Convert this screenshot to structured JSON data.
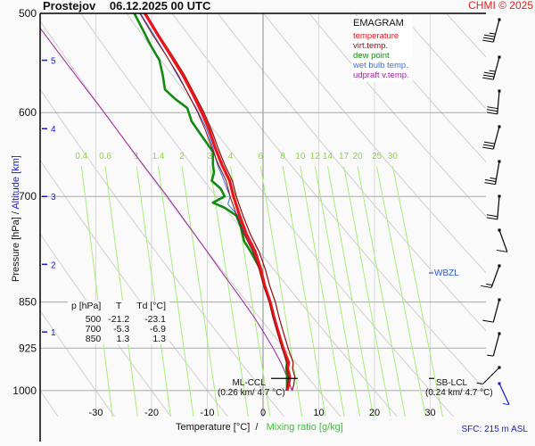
{
  "header": {
    "station": "Prostejov",
    "datetime": "06.12.2025 00 UTC",
    "credit": "CHMI © 2025"
  },
  "legend": {
    "title": "EMAGRAM",
    "items": [
      {
        "label": "temperature",
        "color": "#e8151b"
      },
      {
        "label": "virt.temp.",
        "color": "#8b0f0f"
      },
      {
        "label": "dew point",
        "color": "#138a13"
      },
      {
        "label": "wet bulb temp.",
        "color": "#3070e0"
      },
      {
        "label": "udpraft v.temp.",
        "color": "#a020a0"
      }
    ]
  },
  "axes": {
    "y_title_pressure": "Pressure [hPa]",
    "y_title_sep": "/",
    "y_title_altitude": "Altitude [km]",
    "x_title_temp": "Temperature [°C]",
    "x_title_sep": "/",
    "x_title_mixing": "Mixing ratio [g/kg]",
    "surface": "SFC: 215 m ASL"
  },
  "table": {
    "headers": [
      "p [hPa]",
      "T",
      "Td [°C]"
    ],
    "rows": [
      [
        "500",
        "-21.2",
        "-23.1"
      ],
      [
        "700",
        "-5.3",
        "-6.9"
      ],
      [
        "850",
        "1.3",
        "1.3"
      ]
    ]
  },
  "annotations": {
    "ml_ccl": "ML-CCL",
    "ml_ccl_detail": "(0.26 km/ 4.7 °C)",
    "sb_lcl": "SB-LCL",
    "sb_lcl_detail": "(0.24 km/ 4.7 °C)",
    "wbzl": "WBZL"
  },
  "chart_data": {
    "type": "line",
    "title": "Prostejov 06.12.2025 00 UTC – EMAGRAM",
    "xlabel": "Temperature [°C] / Mixing ratio [g/kg]",
    "ylabel": "Pressure [hPa] / Altitude [km]",
    "xlim": [
      -40,
      40
    ],
    "ylim": [
      1050,
      500
    ],
    "x_ticks": [
      "-30",
      "-20",
      "-10",
      "0",
      "10",
      "20",
      "30"
    ],
    "x_tick_values": [
      -30,
      -20,
      -10,
      0,
      10,
      20,
      30
    ],
    "y_ticks": [
      "500",
      "600",
      "700",
      "850",
      "925",
      "1000"
    ],
    "y_tick_values": [
      500,
      600,
      700,
      850,
      925,
      1000
    ],
    "altitude_ticks": [
      {
        "label": "5",
        "p": 545
      },
      {
        "label": "4",
        "p": 618
      },
      {
        "label": "3",
        "p": 700
      },
      {
        "label": "2",
        "p": 793
      },
      {
        "label": "1",
        "p": 898
      }
    ],
    "mixing_ratio_labels": [
      "0.4",
      "0.6",
      "1",
      "1.4",
      "2",
      "3",
      "4",
      "6",
      "8",
      "10",
      "12",
      "14",
      "17",
      "20",
      "25",
      "30"
    ],
    "mixing_ratio_values": [
      0.4,
      0.6,
      1,
      1.4,
      2,
      3,
      4,
      6,
      8,
      10,
      12,
      14,
      17,
      20,
      25,
      30
    ],
    "grid": true,
    "legend_position": "top-right",
    "series": [
      {
        "name": "temperature",
        "color": "#e8151b",
        "points": [
          [
            1000,
            4.3
          ],
          [
            990,
            4.6
          ],
          [
            975,
            4.8
          ],
          [
            960,
            4.4
          ],
          [
            950,
            4.6
          ],
          [
            925,
            3.6
          ],
          [
            900,
            2.8
          ],
          [
            875,
            2.0
          ],
          [
            850,
            1.3
          ],
          [
            825,
            0.3
          ],
          [
            800,
            -0.4
          ],
          [
            775,
            -1.4
          ],
          [
            750,
            -3.0
          ],
          [
            725,
            -4.2
          ],
          [
            700,
            -5.3
          ],
          [
            680,
            -6.0
          ],
          [
            660,
            -7.4
          ],
          [
            640,
            -8.6
          ],
          [
            620,
            -9.6
          ],
          [
            600,
            -11.0
          ],
          [
            580,
            -12.6
          ],
          [
            560,
            -14.4
          ],
          [
            540,
            -16.6
          ],
          [
            520,
            -18.9
          ],
          [
            500,
            -21.2
          ]
        ]
      },
      {
        "name": "virt.temp.",
        "color": "#8b0f0f",
        "points": [
          [
            1000,
            5.2
          ],
          [
            990,
            5.5
          ],
          [
            975,
            5.7
          ],
          [
            960,
            5.3
          ],
          [
            950,
            5.4
          ],
          [
            925,
            4.5
          ],
          [
            900,
            3.7
          ],
          [
            875,
            2.9
          ],
          [
            850,
            2.2
          ],
          [
            825,
            1.2
          ],
          [
            800,
            0.4
          ],
          [
            775,
            -0.7
          ],
          [
            750,
            -2.3
          ],
          [
            725,
            -3.6
          ],
          [
            700,
            -4.8
          ],
          [
            680,
            -5.5
          ],
          [
            660,
            -6.9
          ],
          [
            640,
            -8.1
          ],
          [
            620,
            -9.2
          ],
          [
            600,
            -10.6
          ],
          [
            580,
            -12.3
          ],
          [
            560,
            -14.1
          ],
          [
            540,
            -16.3
          ],
          [
            520,
            -18.7
          ],
          [
            500,
            -21.0
          ]
        ]
      },
      {
        "name": "dew point",
        "color": "#138a13",
        "points": [
          [
            1000,
            4.3
          ],
          [
            990,
            4.3
          ],
          [
            975,
            4.3
          ],
          [
            960,
            4.2
          ],
          [
            950,
            4.3
          ],
          [
            925,
            3.6
          ],
          [
            900,
            2.8
          ],
          [
            875,
            2.0
          ],
          [
            850,
            1.3
          ],
          [
            825,
            0.3
          ],
          [
            800,
            -0.5
          ],
          [
            775,
            -2.2
          ],
          [
            760,
            -3.4
          ],
          [
            740,
            -4.0
          ],
          [
            725,
            -4.8
          ],
          [
            715,
            -6.8
          ],
          [
            708,
            -9.0
          ],
          [
            700,
            -6.9
          ],
          [
            690,
            -7.6
          ],
          [
            680,
            -9.2
          ],
          [
            670,
            -8.8
          ],
          [
            660,
            -9.0
          ],
          [
            645,
            -9.0
          ],
          [
            630,
            -10.6
          ],
          [
            610,
            -12.8
          ],
          [
            595,
            -13.6
          ],
          [
            585,
            -15.8
          ],
          [
            575,
            -17.6
          ],
          [
            560,
            -18.0
          ],
          [
            545,
            -18.6
          ],
          [
            530,
            -20.2
          ],
          [
            515,
            -21.6
          ],
          [
            500,
            -23.1
          ]
        ]
      },
      {
        "name": "wet bulb temp.",
        "color": "#3070e0",
        "points": [
          [
            1000,
            4.3
          ],
          [
            975,
            4.5
          ],
          [
            950,
            4.4
          ],
          [
            925,
            3.6
          ],
          [
            900,
            2.8
          ],
          [
            875,
            2.0
          ],
          [
            850,
            1.3
          ],
          [
            825,
            0.3
          ],
          [
            800,
            -0.5
          ],
          [
            775,
            -1.7
          ],
          [
            750,
            -3.3
          ],
          [
            725,
            -4.5
          ],
          [
            710,
            -6.3
          ],
          [
            700,
            -5.9
          ],
          [
            690,
            -6.5
          ],
          [
            680,
            -7.0
          ],
          [
            660,
            -8.2
          ],
          [
            640,
            -9.0
          ],
          [
            620,
            -10.0
          ],
          [
            600,
            -11.6
          ],
          [
            580,
            -13.4
          ],
          [
            560,
            -15.4
          ],
          [
            540,
            -17.4
          ],
          [
            520,
            -19.6
          ],
          [
            500,
            -22.0
          ]
        ]
      },
      {
        "name": "udpraft v.temp.",
        "color": "#a020a0",
        "points": [
          [
            1000,
            5.2
          ],
          [
            975,
            4.3
          ],
          [
            950,
            3.2
          ],
          [
            925,
            1.8
          ],
          [
            900,
            0.2
          ],
          [
            875,
            -1.5
          ],
          [
            850,
            -3.5
          ],
          [
            800,
            -7.8
          ],
          [
            750,
            -12.3
          ],
          [
            700,
            -17.2
          ],
          [
            650,
            -22.7
          ],
          [
            600,
            -28.5
          ],
          [
            550,
            -35.0
          ],
          [
            500,
            -42.0
          ]
        ]
      }
    ],
    "wind_barbs": [
      {
        "p": 525,
        "speed_kt": 35
      },
      {
        "p": 565,
        "speed_kt": 35
      },
      {
        "p": 605,
        "speed_kt": 30
      },
      {
        "p": 645,
        "speed_kt": 30
      },
      {
        "p": 690,
        "speed_kt": 25
      },
      {
        "p": 735,
        "speed_kt": 20
      },
      {
        "p": 780,
        "speed_kt": 10
      },
      {
        "p": 825,
        "speed_kt": 15
      },
      {
        "p": 875,
        "speed_kt": 10
      },
      {
        "p": 925,
        "speed_kt": 5
      },
      {
        "p": 975,
        "speed_kt": 5
      },
      {
        "p": 1000,
        "speed_kt": 5
      }
    ]
  }
}
